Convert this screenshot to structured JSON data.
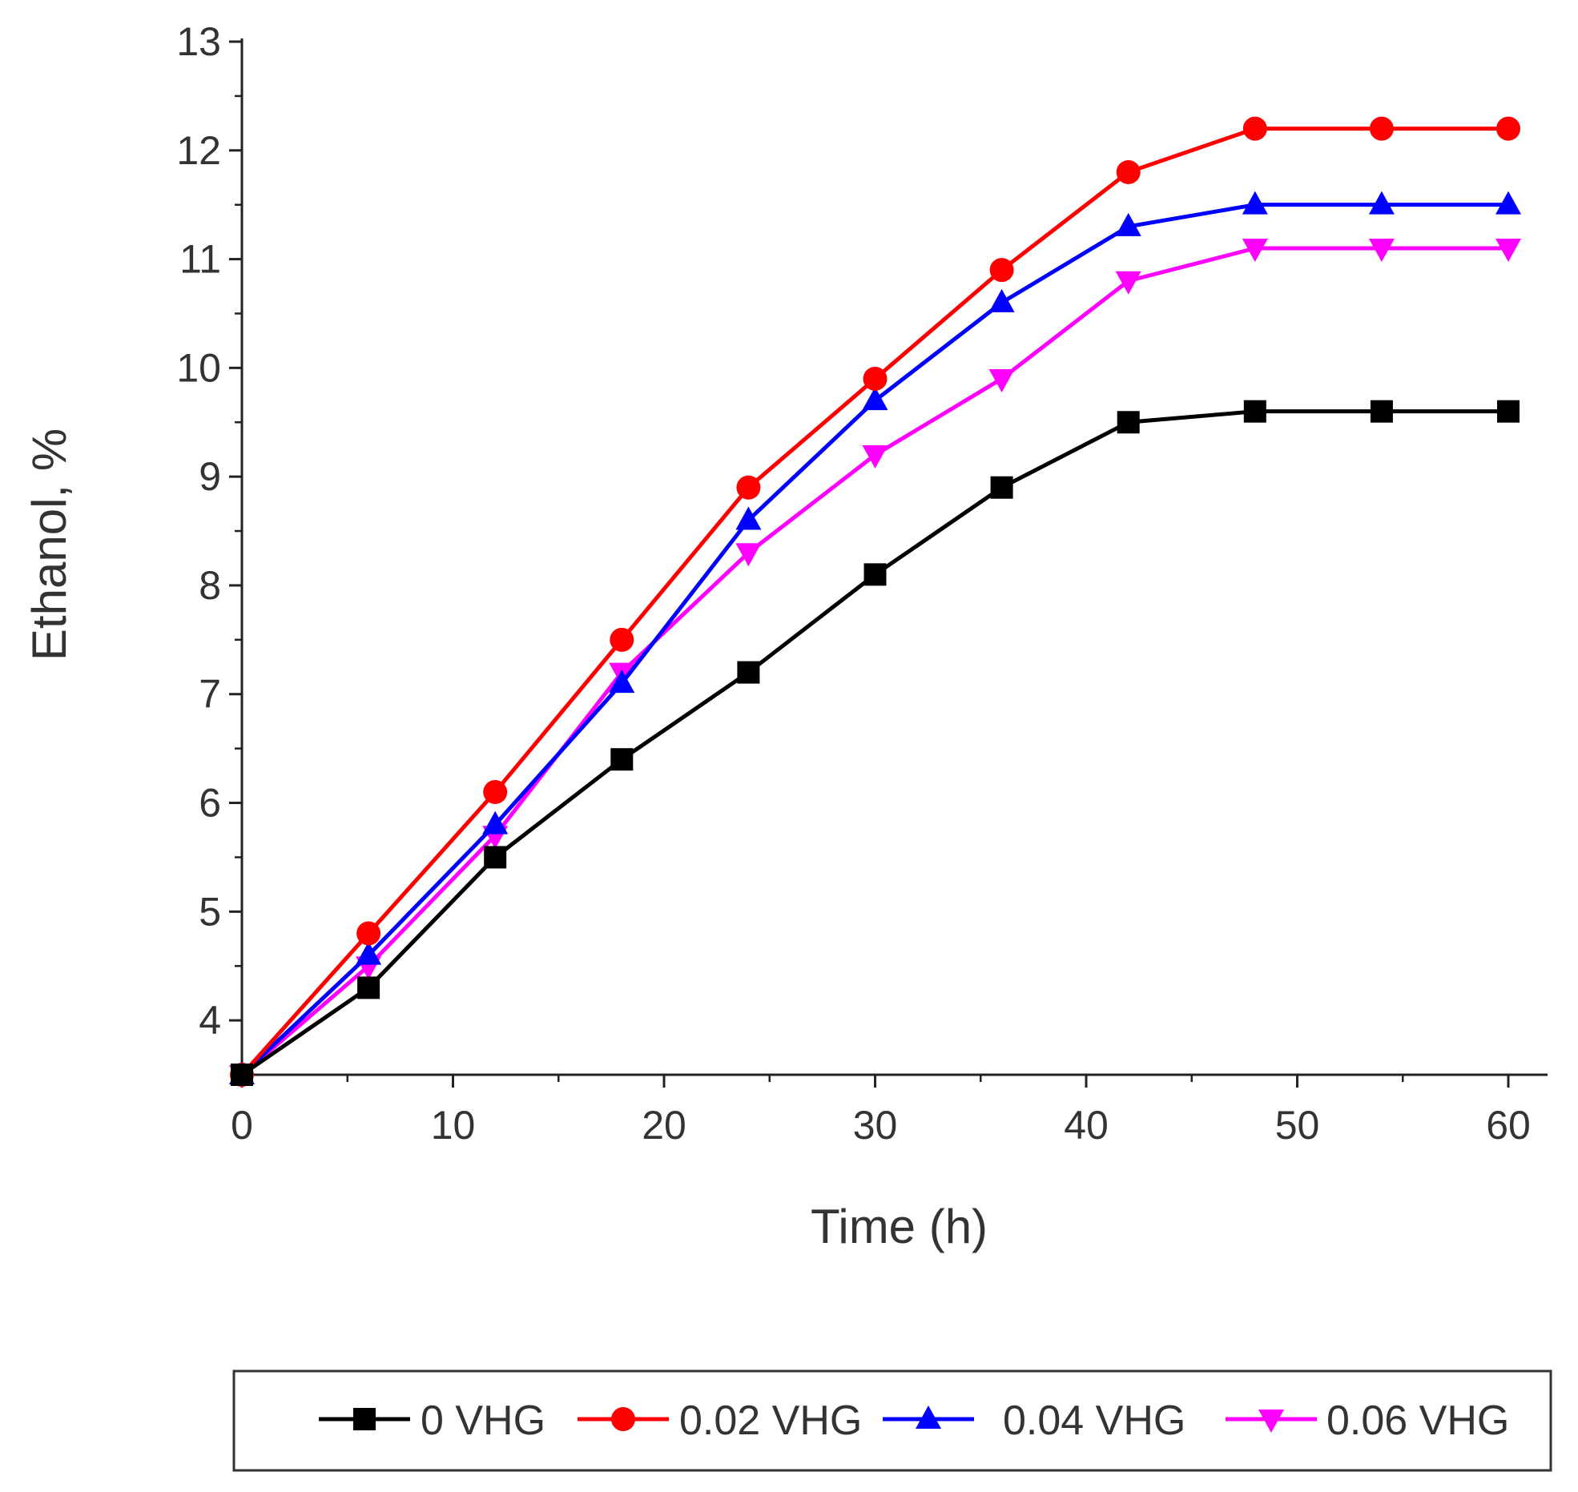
{
  "chart_data": {
    "type": "line",
    "title": "",
    "xlabel": "Time (h)",
    "ylabel": "Ethanol, %",
    "xlim": [
      0,
      60
    ],
    "ylim": [
      3.5,
      13
    ],
    "xticks": [
      0,
      10,
      20,
      30,
      40,
      50,
      60
    ],
    "yticks": [
      4,
      5,
      6,
      7,
      8,
      9,
      10,
      11,
      12,
      13
    ],
    "xtick_labels": [
      "0",
      "10",
      "20",
      "30",
      "40",
      "50",
      "60"
    ],
    "ytick_labels": [
      "4",
      "5",
      "6",
      "7",
      "8",
      "9",
      "10",
      "11",
      "12",
      "13"
    ],
    "grid": false,
    "legend_position": "bottom",
    "x": [
      0,
      6,
      12,
      18,
      24,
      30,
      36,
      42,
      48,
      54,
      60
    ],
    "series": [
      {
        "name": "0 VHG",
        "color": "#000000",
        "marker": "square",
        "values": [
          3.5,
          4.3,
          5.5,
          6.4,
          7.2,
          8.1,
          8.9,
          9.5,
          9.6,
          9.6,
          9.6
        ]
      },
      {
        "name": "0.02 VHG",
        "color": "#ff0000",
        "marker": "circle",
        "values": [
          3.5,
          4.8,
          6.1,
          7.5,
          8.9,
          9.9,
          10.9,
          11.8,
          12.2,
          12.2,
          12.2
        ]
      },
      {
        "name": "0.04 VHG",
        "color": "#0000ff",
        "marker": "triangle-up",
        "values": [
          3.5,
          4.6,
          5.8,
          7.1,
          8.6,
          9.7,
          10.6,
          11.3,
          11.5,
          11.5,
          11.5
        ]
      },
      {
        "name": "0.06 VHG",
        "color": "#ff00ff",
        "marker": "triangle-down",
        "values": [
          3.5,
          4.5,
          5.7,
          7.2,
          8.3,
          9.2,
          9.9,
          10.8,
          11.1,
          11.1,
          11.1
        ]
      }
    ]
  }
}
